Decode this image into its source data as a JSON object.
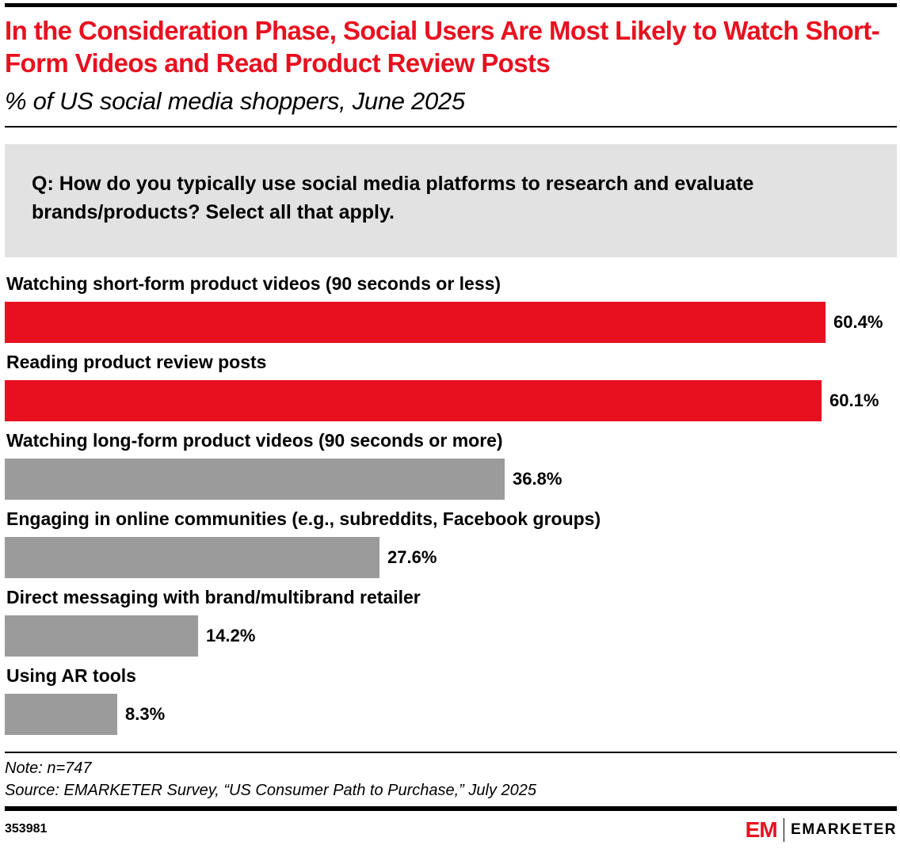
{
  "header": {
    "title": "In the Consideration Phase, Social Users Are Most Likely to Watch Short-Form Videos and Read Product Review Posts",
    "subtitle": "% of US social media shoppers, June 2025"
  },
  "question": "Q: How do you typically use social media platforms to research and evaluate brands/products? Select all that apply.",
  "colors": {
    "highlight": "#e8101f",
    "default": "#9b9b9b"
  },
  "chart_data": {
    "type": "bar",
    "orientation": "horizontal",
    "title": "In the Consideration Phase, Social Users Are Most Likely to Watch Short-Form Videos and Read Product Review Posts",
    "subtitle": "% of US social media shoppers, June 2025",
    "xlabel": "",
    "ylabel": "",
    "xlim": [
      0,
      60.4
    ],
    "grid": false,
    "categories": [
      "Watching short-form product videos (90 seconds or less)",
      "Reading product review posts",
      "Watching long-form product videos (90 seconds or more)",
      "Engaging in online communities (e.g., subreddits, Facebook groups)",
      "Direct messaging with brand/multibrand retailer",
      "Using AR tools"
    ],
    "values": [
      60.4,
      60.1,
      36.8,
      27.6,
      14.2,
      8.3
    ],
    "value_labels": [
      "60.4%",
      "60.1%",
      "36.8%",
      "27.6%",
      "14.2%",
      "8.3%"
    ],
    "highlighted": [
      true,
      true,
      false,
      false,
      false,
      false
    ]
  },
  "footer": {
    "note": "Note: n=747",
    "source": "Source: EMARKETER Survey, “US Consumer Path to Purchase,” July 2025",
    "chart_id": "353981",
    "logo_mark": "EM",
    "logo_text": "EMARKETER"
  }
}
